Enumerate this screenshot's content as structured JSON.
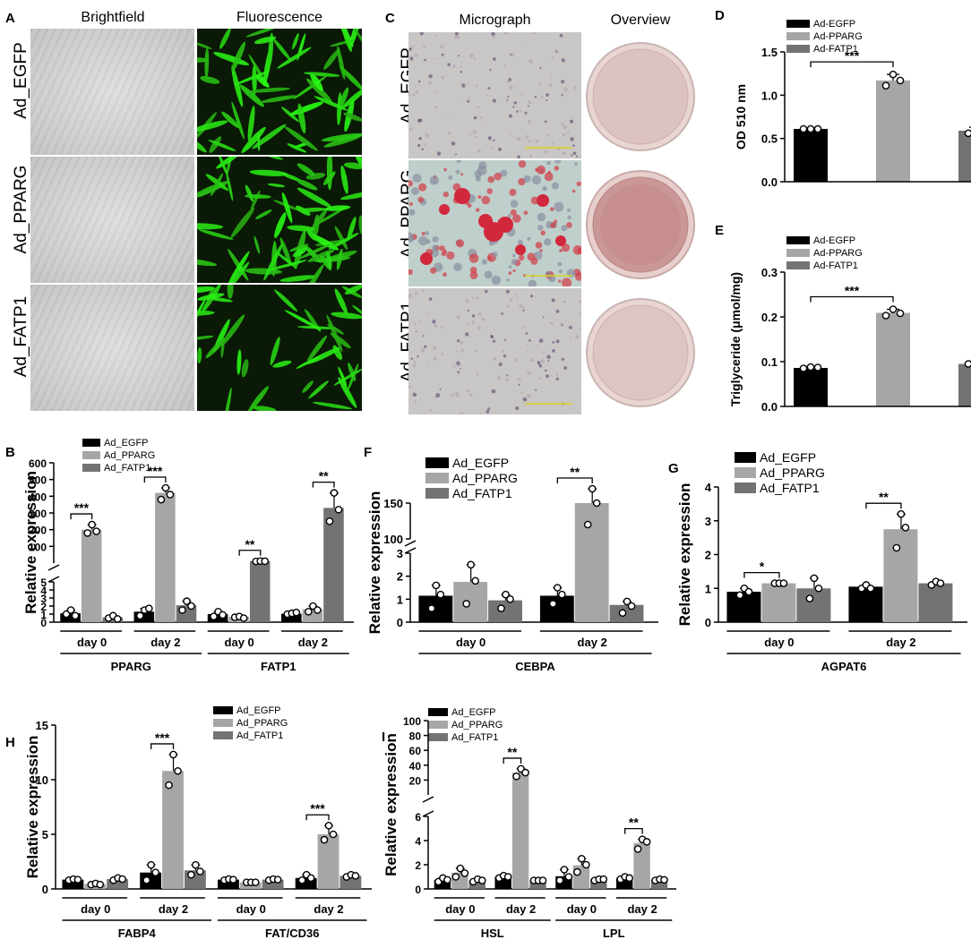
{
  "panels": {
    "A": {
      "letter": "A",
      "col1": "Brightfield",
      "col2": "Fluorescence",
      "rows": [
        "Ad_EGFP",
        "Ad_PPARG",
        "Ad_FATP1"
      ]
    },
    "C": {
      "letter": "C",
      "col1": "Micrograph",
      "col2": "Overview",
      "rows": [
        "Ad_EGFP",
        "Ad_PPARG",
        "Ad_FATP1"
      ]
    }
  },
  "colors": {
    "egfp": "#000000",
    "pparg": "#a6a6a6",
    "fatp1": "#737373",
    "fluor": "#2bd11e",
    "oil_red": "#d2283c"
  },
  "chart_data": [
    {
      "id": "D",
      "type": "bar",
      "letter": "D",
      "legend": [
        "Ad-EGFP",
        "Ad-PPARG",
        "Ad-FATP1"
      ],
      "ylabel": "OD 510 nm",
      "ylim": [
        0,
        1.5
      ],
      "yticks": [
        "0.0",
        "0.5",
        "1.0",
        "1.5"
      ],
      "values": [
        0.61,
        1.17,
        0.59
      ],
      "points": [
        [
          0.61,
          0.61,
          0.61
        ],
        [
          1.11,
          1.24,
          1.17
        ],
        [
          0.56,
          0.63,
          0.59
        ]
      ],
      "sig": [
        {
          "from": 0,
          "to": 1,
          "label": "***"
        }
      ]
    },
    {
      "id": "E",
      "type": "bar",
      "letter": "E",
      "legend": [
        "Ad-EGFP",
        "Ad-PPARG",
        "Ad-FATP1"
      ],
      "ylabel": "Triglyceride (μmol/mg)",
      "ylim": [
        0,
        0.3
      ],
      "yticks": [
        "0.0",
        "0.1",
        "0.2",
        "0.3"
      ],
      "values": [
        0.086,
        0.209,
        0.095
      ],
      "points": [
        [
          0.085,
          0.088,
          0.087
        ],
        [
          0.203,
          0.217,
          0.208
        ],
        [
          0.095,
          0.097,
          0.094
        ]
      ],
      "sig": [
        {
          "from": 0,
          "to": 1,
          "label": "***"
        }
      ]
    },
    {
      "id": "B",
      "type": "bar",
      "letter": "B",
      "legend": [
        "Ad_EGFP",
        "Ad_PPARG",
        "Ad_FATP1"
      ],
      "ylabel": "Relative expression",
      "broken": {
        "lower": [
          0,
          5
        ],
        "upper": [
          0,
          600
        ],
        "lowerTicks": [
          "0",
          "1",
          "2",
          "3",
          "4",
          "5"
        ],
        "upperTicks": [
          "100",
          "200",
          "300",
          "400",
          "500",
          "600"
        ]
      },
      "groups": [
        {
          "label": "day 0",
          "gene": "PPARG",
          "values": [
            1.1,
            200,
            0.6
          ],
          "points": [
            [
              1.0,
              1.5,
              0.8
            ],
            [
              180,
              230,
              190
            ],
            [
              0.5,
              0.8,
              0.4
            ]
          ]
        },
        {
          "label": "day 2",
          "gene": "PPARG",
          "values": [
            1.3,
            420,
            2.1
          ],
          "points": [
            [
              0.8,
              1.5,
              1.7
            ],
            [
              380,
              450,
              410
            ],
            [
              1.5,
              2.6,
              2.0
            ]
          ]
        },
        {
          "label": "day 0",
          "gene": "FATP1",
          "values": [
            1.0,
            0.65,
            12
          ],
          "points": [
            [
              0.7,
              1.3,
              0.9
            ],
            [
              0.6,
              0.7,
              0.5
            ],
            [
              10,
              12,
              11
            ]
          ]
        },
        {
          "label": "day 2",
          "gene": "FATP1",
          "values": [
            1.05,
            1.6,
            330
          ],
          "points": [
            [
              1.0,
              1.1,
              1.2
            ],
            [
              1.3,
              2.0,
              1.5
            ],
            [
              250,
              420,
              320
            ]
          ]
        }
      ],
      "genes": [
        "PPARG",
        "FATP1"
      ],
      "sig": [
        {
          "group": 0,
          "label": "***"
        },
        {
          "group": 1,
          "label": "***"
        },
        {
          "group": 2,
          "label": "**"
        },
        {
          "group": 3,
          "label": "**"
        }
      ]
    },
    {
      "id": "F",
      "type": "bar",
      "letter": "F",
      "legend": [
        "Ad_EGFP",
        "Ad_PPARG",
        "Ad_FATP1"
      ],
      "ylabel": "Relative expression",
      "broken": {
        "lower": [
          0,
          3
        ],
        "upper": [
          100,
          150
        ],
        "lowerTicks": [
          "0",
          "1",
          "2",
          "3"
        ],
        "upperTicks": [
          "100",
          "150"
        ]
      },
      "groups": [
        {
          "label": "day 0",
          "values": [
            1.15,
            1.75,
            0.95
          ],
          "points": [
            [
              0.6,
              1.6,
              1.2
            ],
            [
              0.8,
              2.5,
              1.8
            ],
            [
              0.6,
              1.2,
              1.0
            ]
          ]
        },
        {
          "label": "day 2",
          "values": [
            1.15,
            150,
            0.75
          ],
          "points": [
            [
              0.8,
              1.5,
              1.2
            ],
            [
              120,
              170,
              150
            ],
            [
              0.4,
              0.9,
              0.7
            ]
          ]
        }
      ],
      "genes": [
        "CEBPA"
      ],
      "sig": [
        {
          "group": 1,
          "label": "**"
        }
      ]
    },
    {
      "id": "G",
      "type": "bar",
      "letter": "G",
      "legend": [
        "Ad_EGFP",
        "Ad_PPARG",
        "Ad_FATP1"
      ],
      "ylabel": "Relative expression",
      "ylim": [
        0,
        4
      ],
      "yticks": [
        "0",
        "1",
        "2",
        "3",
        "4"
      ],
      "groups": [
        {
          "label": "day 0",
          "values": [
            0.9,
            1.15,
            1.0
          ],
          "points": [
            [
              0.8,
              1.0,
              0.9
            ],
            [
              1.15,
              1.15,
              1.15
            ],
            [
              0.7,
              1.3,
              1.0
            ]
          ]
        },
        {
          "label": "day 2",
          "values": [
            1.05,
            2.75,
            1.15
          ],
          "points": [
            [
              1.0,
              1.1,
              1.0
            ],
            [
              2.2,
              3.2,
              2.8
            ],
            [
              1.1,
              1.2,
              1.15
            ]
          ]
        }
      ],
      "genes": [
        "AGPAT6"
      ],
      "sig": [
        {
          "group": 0,
          "label": "*"
        },
        {
          "group": 1,
          "label": "**"
        }
      ]
    },
    {
      "id": "H",
      "type": "bar",
      "letter": "H",
      "legend": [
        "Ad_EGFP",
        "Ad_PPARG",
        "Ad_FATP1"
      ],
      "ylabel": "Relative expression",
      "ylim": [
        0,
        15
      ],
      "yticks": [
        "0",
        "5",
        "10",
        "15"
      ],
      "groups": [
        {
          "label": "day 0",
          "values": [
            0.85,
            0.45,
            0.9
          ],
          "points": [
            [
              0.8,
              0.9,
              0.85
            ],
            [
              0.4,
              0.5,
              0.4
            ],
            [
              0.8,
              1.0,
              0.9
            ]
          ]
        },
        {
          "label": "day 2",
          "values": [
            1.5,
            10.8,
            1.7
          ],
          "points": [
            [
              0.8,
              2.2,
              1.5
            ],
            [
              9.5,
              12.3,
              10.8
            ],
            [
              1.3,
              2.2,
              1.6
            ]
          ]
        },
        {
          "label": "day 0",
          "values": [
            0.85,
            0.6,
            0.85
          ],
          "points": [
            [
              0.8,
              0.9,
              0.85
            ],
            [
              0.6,
              0.6,
              0.6
            ],
            [
              0.8,
              0.9,
              0.85
            ]
          ]
        },
        {
          "label": "day 2",
          "values": [
            1.0,
            5.0,
            1.2
          ],
          "points": [
            [
              0.8,
              1.3,
              1.0
            ],
            [
              4.5,
              5.8,
              5.0
            ],
            [
              1.1,
              1.3,
              1.2
            ]
          ]
        }
      ],
      "genes": [
        "FABP4",
        "FAT/CD36"
      ],
      "sig": [
        {
          "group": 1,
          "label": "***"
        },
        {
          "group": 3,
          "label": "***"
        }
      ]
    },
    {
      "id": "I",
      "type": "bar",
      "letter": "I",
      "legend": [
        "Ad_EGFP",
        "Ad_PPARG",
        "Ad_FATP1"
      ],
      "ylabel": "Relative expression",
      "broken": {
        "lower": [
          0,
          6
        ],
        "upper": [
          0,
          100
        ],
        "lowerTicks": [
          "0",
          "2",
          "4",
          "6"
        ],
        "upperTicks": [
          "20",
          "40",
          "60",
          "80",
          "100"
        ]
      },
      "groups": [
        {
          "label": "day 0",
          "values": [
            0.75,
            1.35,
            0.7
          ],
          "points": [
            [
              0.6,
              0.9,
              0.75
            ],
            [
              1.0,
              1.7,
              1.3
            ],
            [
              0.6,
              0.8,
              0.7
            ]
          ]
        },
        {
          "label": "day 2",
          "values": [
            1.0,
            30,
            0.7
          ],
          "points": [
            [
              0.9,
              1.1,
              1.0
            ],
            [
              25,
              35,
              30
            ],
            [
              0.7,
              0.7,
              0.7
            ]
          ]
        },
        {
          "label": "day 0",
          "values": [
            1.05,
            1.95,
            0.8
          ],
          "points": [
            [
              0.7,
              1.6,
              1.0
            ],
            [
              1.4,
              2.5,
              2.0
            ],
            [
              0.7,
              0.8,
              0.8
            ]
          ]
        },
        {
          "label": "day 2",
          "values": [
            0.9,
            3.8,
            0.75
          ],
          "points": [
            [
              0.8,
              1.0,
              0.9
            ],
            [
              3.3,
              4.1,
              3.9
            ],
            [
              0.7,
              0.8,
              0.75
            ]
          ]
        }
      ],
      "genes": [
        "HSL",
        "LPL"
      ],
      "sig": [
        {
          "group": 1,
          "label": "**"
        },
        {
          "group": 3,
          "label": "**"
        }
      ]
    }
  ]
}
